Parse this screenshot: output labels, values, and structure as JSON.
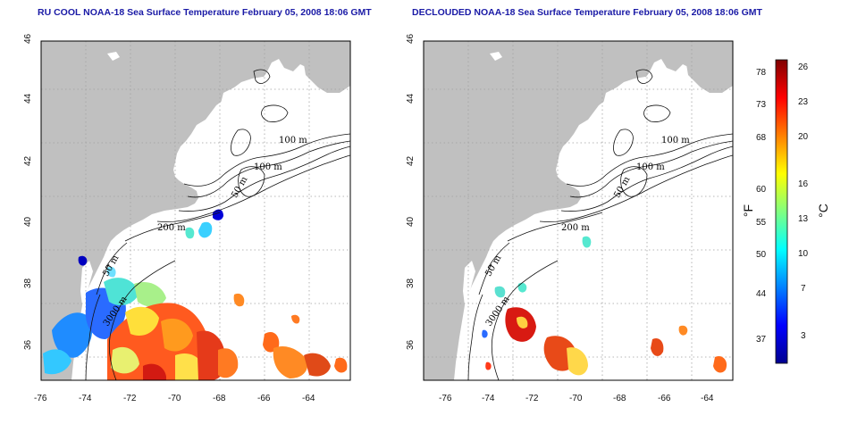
{
  "panels": [
    {
      "id": "left",
      "title": "RU COOL NOAA-18 Sea Surface Temperature February 05, 2008 18:06 GMT",
      "contour_labels": [
        "100 m",
        "100 m",
        "50 m",
        "200 m",
        "50 m",
        "3000 m"
      ]
    },
    {
      "id": "right",
      "title": "DECLOUDED NOAA-18 Sea Surface Temperature February 05, 2008 18:06 GMT",
      "contour_labels": [
        "100 m",
        "100 m",
        "50 m",
        "200 m",
        "50 m",
        "3000 m"
      ]
    }
  ],
  "axes": {
    "lon_ticks": [
      "-76",
      "-74",
      "-72",
      "-70",
      "-68",
      "-66",
      "-64"
    ],
    "lat_ticks": [
      "46",
      "44",
      "42",
      "40",
      "38",
      "36"
    ]
  },
  "colorbar": {
    "f_label": "°F",
    "c_label": "°C",
    "f_ticks": [
      "78",
      "73",
      "68",
      "60",
      "55",
      "50",
      "44",
      "37"
    ],
    "c_ticks": [
      "26",
      "23",
      "20",
      "16",
      "13",
      "10",
      "7",
      "3"
    ],
    "stops": [
      "#00008f",
      "#0000ff",
      "#0080ff",
      "#00ffff",
      "#80ff80",
      "#ffff00",
      "#ff8000",
      "#ff0000",
      "#800000"
    ]
  },
  "colors": {
    "land": "#c0c0c0",
    "ocean": "#ffffff",
    "title": "#1a1aa6",
    "grid": "#a0a0a0"
  }
}
